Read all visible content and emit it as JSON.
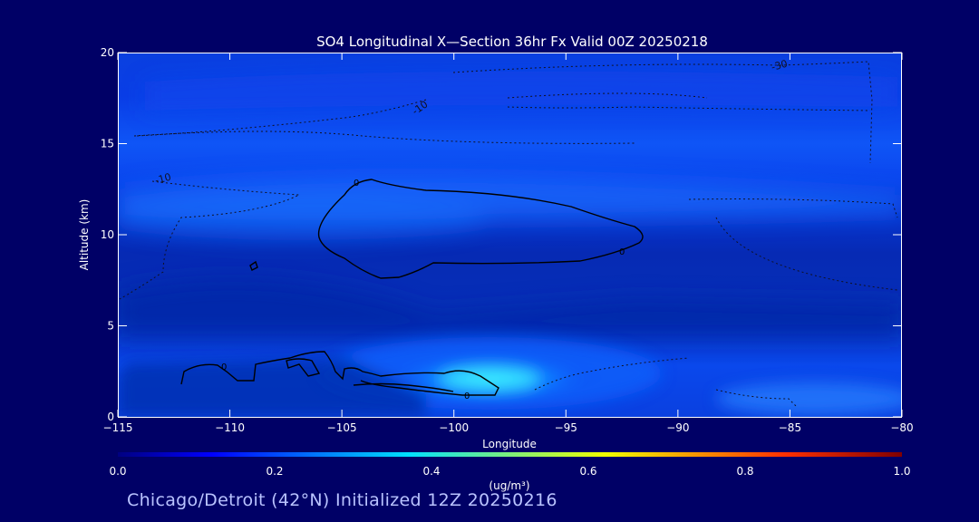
{
  "chart_data": {
    "type": "contour",
    "title": "SO4 Longitudinal X—Section 36hr  Fx Valid 00Z 20250218",
    "xlabel": "Longitude",
    "ylabel": "Altitude (km)",
    "xlim": [
      -115,
      -80
    ],
    "ylim": [
      0,
      20
    ],
    "x_ticks": [
      -115,
      -110,
      -105,
      -100,
      -95,
      -90,
      -85,
      -80
    ],
    "x_tick_labels": [
      "−115",
      "−110",
      "−105",
      "−100",
      "−95",
      "−90",
      "−85",
      "−80"
    ],
    "y_ticks": [
      0,
      5,
      10,
      15,
      20
    ],
    "y_tick_labels": [
      "0",
      "5",
      "10",
      "15",
      "20"
    ],
    "colorbar": {
      "label": "(ug/m³)",
      "range": [
        0.0,
        1.0
      ],
      "ticks": [
        0.0,
        0.2,
        0.4,
        0.6,
        0.8,
        1.0
      ],
      "tick_labels": [
        "0.0",
        "0.2",
        "0.4",
        "0.6",
        "0.8",
        "1.0"
      ],
      "colormap": "rainbow (dark blue → cyan → yellow → red)"
    },
    "concentration_max": {
      "lon": -98.5,
      "alt_km": 1.5,
      "value_ug_m3": 0.32
    },
    "temperature_contours": [
      {
        "value": 0,
        "label": "0",
        "style": "solid",
        "regions": [
          "upper layer near 10 km from -106 to -91",
          "low level boundary layer from -112 to -98"
        ]
      },
      {
        "value": -10,
        "label": "-10",
        "style": "dotted"
      },
      {
        "value": -30,
        "label": "-30",
        "style": "dotted"
      }
    ],
    "grid": false
  },
  "footer": {
    "text": "Chicago/Detroit (42°N) Initialized 12Z 20250216"
  },
  "colors": {
    "background": "#000066",
    "plot_base": "#0033cc",
    "text": "#ffffff",
    "footer_text": "#b9c3ff"
  }
}
